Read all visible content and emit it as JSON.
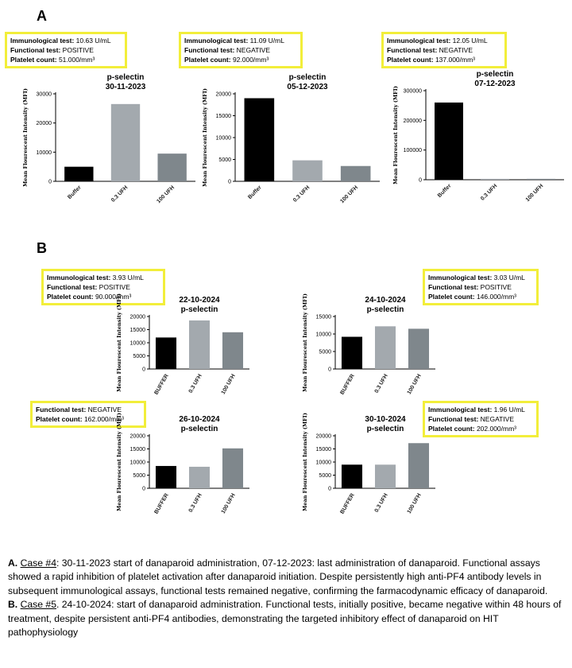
{
  "panel_a": {
    "letter": "A",
    "boxes": [
      {
        "immuno_label": "Immunological test:",
        "immuno_value": "10.63 U/mL",
        "func_label": "Functional test:",
        "func_value": "POSITIVE",
        "plt_label": "Platelet count:",
        "plt_value": "51.000/mm³"
      },
      {
        "immuno_label": "Immunological test:",
        "immuno_value": "11.09 U/mL",
        "func_label": "Functional test:",
        "func_value": "NEGATIVE",
        "plt_label": "Platelet count:",
        "plt_value": "92.000/mm³"
      },
      {
        "immuno_label": "Immunological test:",
        "immuno_value": "12.05 U/mL",
        "func_label": "Functional test:",
        "func_value": "NEGATIVE",
        "plt_label": "Platelet count:",
        "plt_value": "137.000/mm³"
      }
    ]
  },
  "panel_b": {
    "letter": "B",
    "boxes": [
      {
        "immuno_label": "Immunological test:",
        "immuno_value": "3.93 U/mL",
        "func_label": "Functional test:",
        "func_value": "POSITIVE",
        "plt_label": "Platelet count:",
        "plt_value": "90.000/mm³"
      },
      {
        "immuno_label": "Immunological test:",
        "immuno_value": "3.03 U/mL",
        "func_label": "Functional test:",
        "func_value": "POSITIVE",
        "plt_label": "Platelet count:",
        "plt_value": "146.000/mm³"
      },
      {
        "func_label": "Functional test:",
        "func_value": "NEGATIVE",
        "plt_label": "Platelet count:",
        "plt_value": "162.000/mm³"
      },
      {
        "immuno_label": "Immunological test:",
        "immuno_value": "1.96 U/mL",
        "func_label": "Functional test:",
        "func_value": "NEGATIVE",
        "plt_label": "Platelet count:",
        "plt_value": "202.000/mm³"
      }
    ]
  },
  "chart_data": [
    {
      "type": "bar",
      "title": "p-selectin",
      "subtitle": "30-11-2023",
      "ylabel": "Mean Flourescent Intensity (MFI)",
      "categories": [
        "Buffer",
        "0.3 UFH",
        "100 UFH"
      ],
      "values": [
        5000,
        26500,
        9500
      ],
      "ylim": [
        0,
        30000
      ],
      "yticks": [
        "0",
        "10000",
        "20000",
        "30000"
      ],
      "tickvals": [
        0,
        10000,
        20000,
        30000
      ],
      "colors": [
        "#000000",
        "#a3a9ae",
        "#7f878c"
      ],
      "grid": false
    },
    {
      "type": "bar",
      "title": "p-selectin",
      "subtitle": "05-12-2023",
      "ylabel": "Mean Flourescent Intensity (MFI)",
      "categories": [
        "Buffer",
        "0.3 UFH",
        "100 UFH"
      ],
      "values": [
        19000,
        4800,
        3500
      ],
      "ylim": [
        0,
        20000
      ],
      "yticks": [
        "0",
        "5000",
        "10000",
        "15000",
        "20000"
      ],
      "tickvals": [
        0,
        5000,
        10000,
        15000,
        20000
      ],
      "colors": [
        "#000000",
        "#a3a9ae",
        "#7f878c"
      ],
      "grid": false
    },
    {
      "type": "bar",
      "title": "p-selectin",
      "subtitle": "07-12-2023",
      "ylabel": "Mean Flourescent Intensity (MFI)",
      "categories": [
        "Buffer",
        "0.3 UFH",
        "100 UFH"
      ],
      "values": [
        260000,
        3000,
        3000
      ],
      "ylim": [
        0,
        300000
      ],
      "yticks": [
        "0",
        "100000",
        "200000",
        "300000"
      ],
      "tickvals": [
        0,
        100000,
        200000,
        300000
      ],
      "colors": [
        "#000000",
        "#a3a9ae",
        "#7f878c"
      ],
      "grid": false
    },
    {
      "type": "bar",
      "title": "22-10-2024",
      "subtitle": "p-selectin",
      "ylabel": "Mean Flourescent Intensity (MFI)",
      "categories": [
        "BUFFER",
        "0.3 UFH",
        "100 UFH"
      ],
      "values": [
        12000,
        18500,
        14000
      ],
      "ylim": [
        0,
        20000
      ],
      "yticks": [
        "0",
        "5000",
        "10000",
        "15000",
        "20000"
      ],
      "tickvals": [
        0,
        5000,
        10000,
        15000,
        20000
      ],
      "colors": [
        "#000000",
        "#a3a9ae",
        "#7f878c"
      ],
      "grid": false
    },
    {
      "type": "bar",
      "title": "24-10-2024",
      "subtitle": "p-selectin",
      "ylabel": "Mean Flourescent Intensity (MFI)",
      "categories": [
        "BUFFER",
        "0.3 UFH",
        "100 UFH"
      ],
      "values": [
        9200,
        12200,
        11500
      ],
      "ylim": [
        0,
        15000
      ],
      "yticks": [
        "0",
        "5000",
        "10000",
        "15000"
      ],
      "tickvals": [
        0,
        5000,
        10000,
        15000
      ],
      "colors": [
        "#000000",
        "#a3a9ae",
        "#7f878c"
      ],
      "grid": false
    },
    {
      "type": "bar",
      "title": "26-10-2024",
      "subtitle": "p-selectin",
      "ylabel": "Mean Flourescent Intensity (MFI)",
      "categories": [
        "BUFFER",
        "0.3 UFH",
        "100 UFH"
      ],
      "values": [
        8500,
        8200,
        15200
      ],
      "ylim": [
        0,
        20000
      ],
      "yticks": [
        "0",
        "5000",
        "10000",
        "15000",
        "20000"
      ],
      "tickvals": [
        0,
        5000,
        10000,
        15000,
        20000
      ],
      "colors": [
        "#000000",
        "#a3a9ae",
        "#7f878c"
      ],
      "grid": false
    },
    {
      "type": "bar",
      "title": "30-10-2024",
      "subtitle": "p-selectin",
      "ylabel": "Mean Flourescent Intensity (MFI)",
      "categories": [
        "BUFFER",
        "0.3 UFH",
        "100 UFH"
      ],
      "values": [
        9000,
        9000,
        17200
      ],
      "ylim": [
        0,
        20000
      ],
      "yticks": [
        "0",
        "5000",
        "10000",
        "15000",
        "20000"
      ],
      "tickvals": [
        0,
        5000,
        10000,
        15000,
        20000
      ],
      "colors": [
        "#000000",
        "#a3a9ae",
        "#7f878c"
      ],
      "grid": false
    }
  ],
  "caption": {
    "a_letter": "A.",
    "a_case": "Case #4",
    "a_text": ": 30-11-2023 start of danaparoid administration, 07-12-2023: last administration of danaparoid. Functional assays showed a rapid inhibition of platelet activation after danaparoid initiation. Despite persistently high anti-PF4 antibody levels in subsequent immunological assays, functional tests remained negative, confirming the farmacodynamic efficacy of danaparoid.",
    "b_letter": "B.",
    "b_case": "Case #5",
    "b_text": ". 24-10-2024: start of danaparoid administration. Functional tests, initially positive, became negative within 48 hours of treatment, despite persistent anti-PF4 antibodies, demonstrating the targeted inhibitory effect of danaparoid on HIT pathophysiology"
  }
}
